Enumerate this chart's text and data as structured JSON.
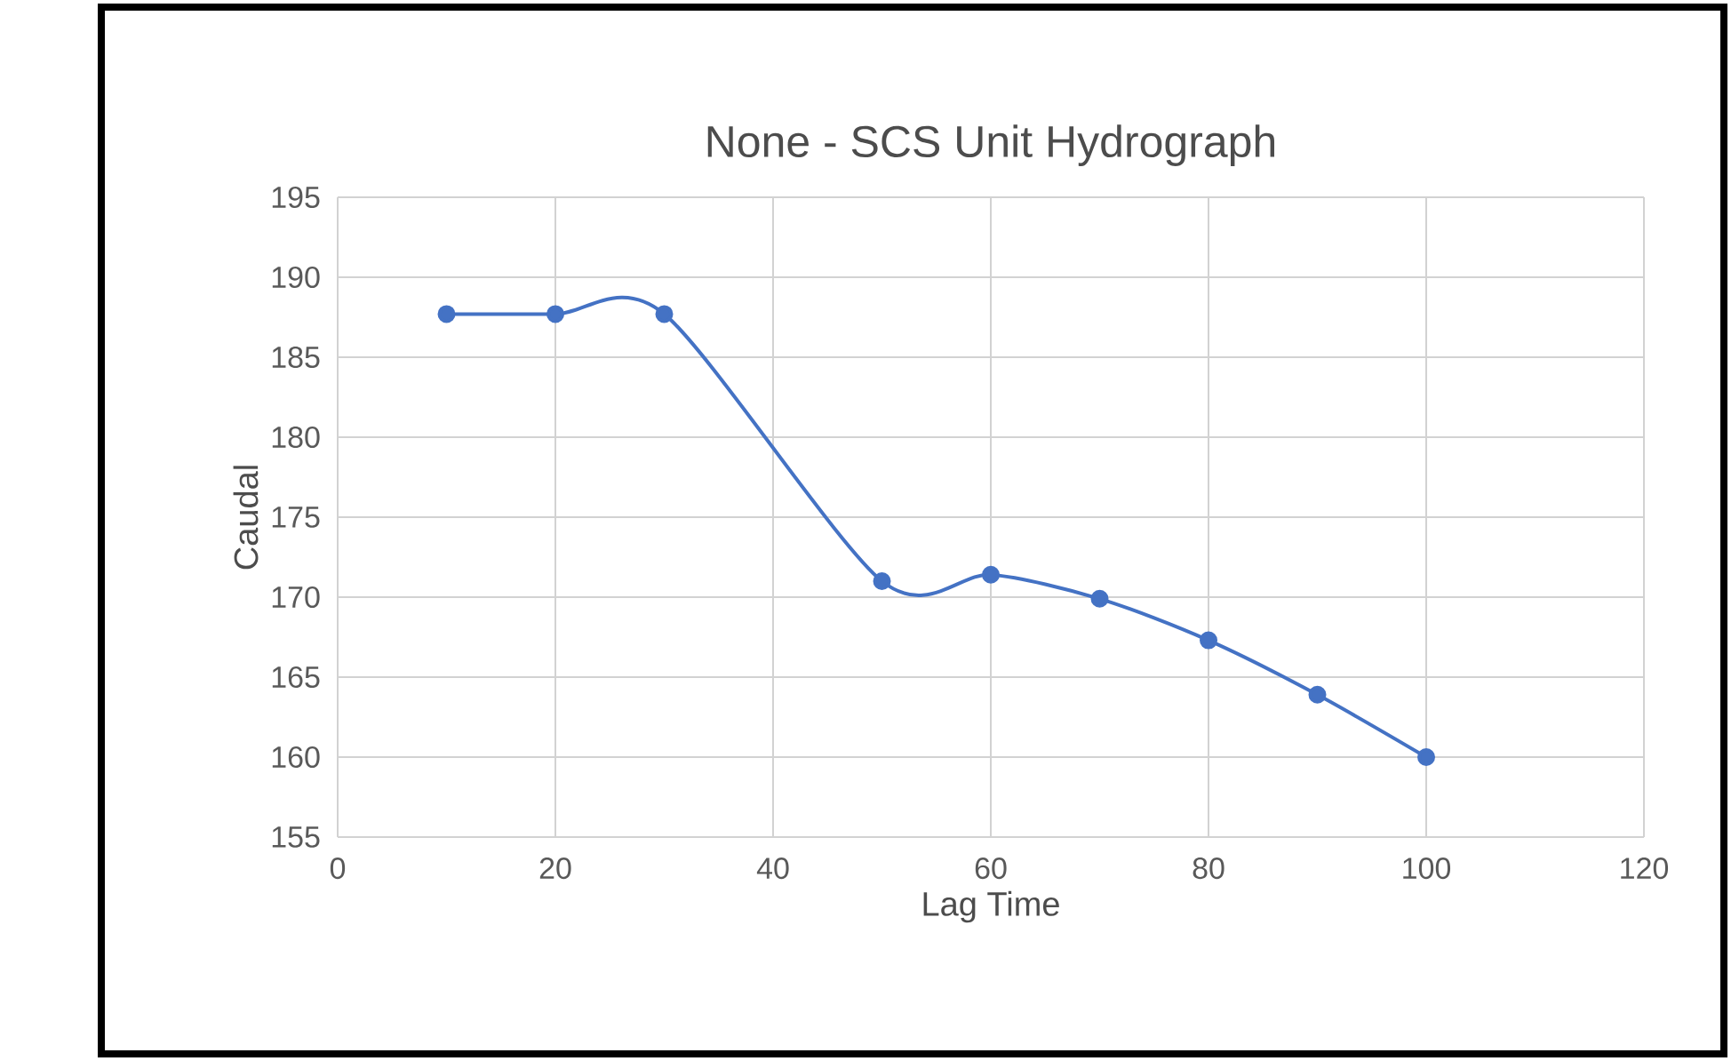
{
  "chart_data": {
    "type": "line",
    "title": "None - SCS Unit Hydrograph",
    "xlabel": "Lag Time",
    "ylabel": "Caudal",
    "x": [
      10,
      20,
      30,
      50,
      60,
      70,
      80,
      90,
      100
    ],
    "series": [
      {
        "color": "#4472c4",
        "values": [
          187.7,
          187.7,
          187.7,
          171,
          171.4,
          169.9,
          167.3,
          163.9,
          160
        ]
      }
    ],
    "xlim": [
      0,
      120
    ],
    "xticks": [
      0,
      20,
      40,
      60,
      80,
      100,
      120
    ],
    "ylim": [
      155,
      195
    ],
    "yticks": [
      155,
      160,
      165,
      170,
      175,
      180,
      185,
      190,
      195
    ],
    "grid": true,
    "marker": "circle",
    "line_style": "solid"
  }
}
